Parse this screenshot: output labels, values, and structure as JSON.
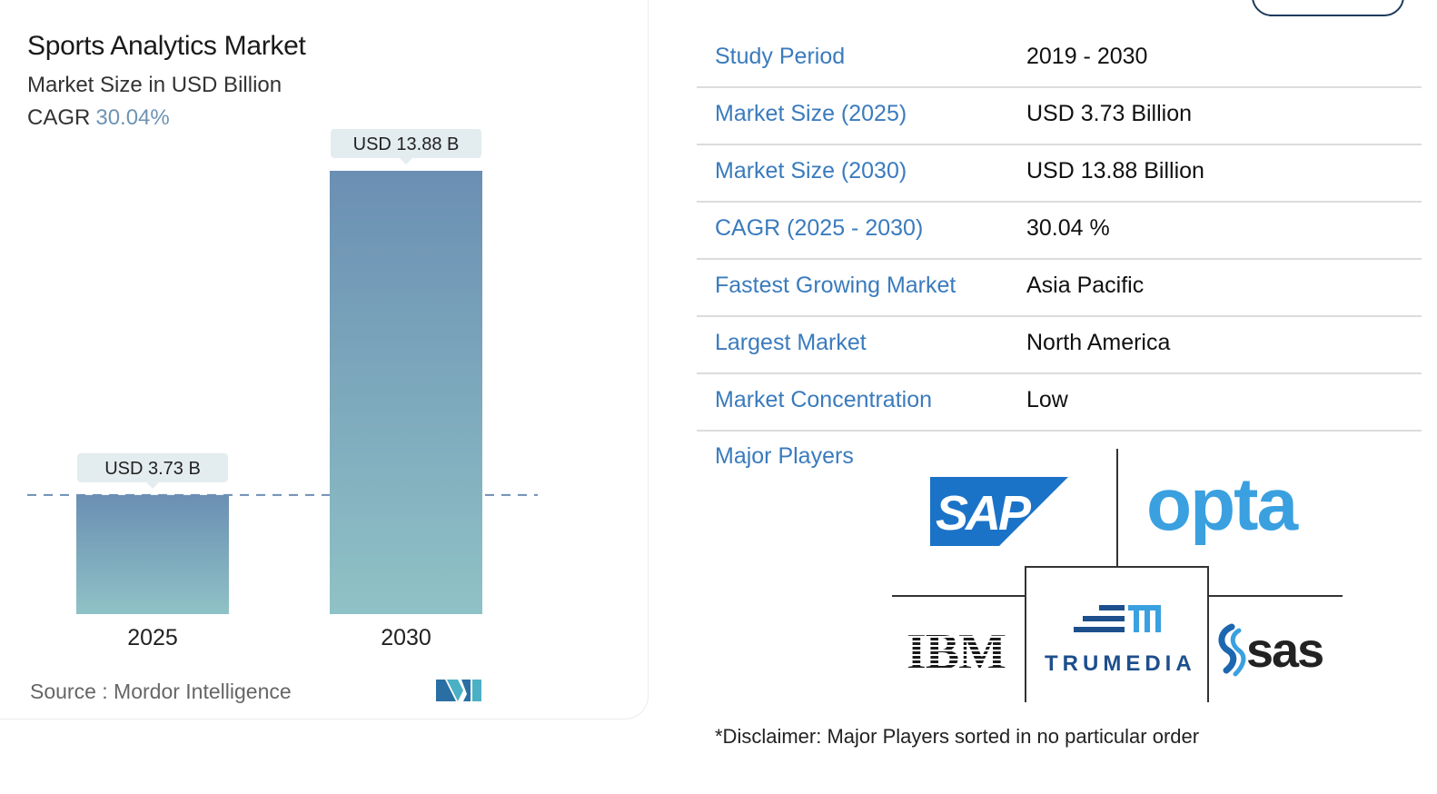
{
  "chart_data": {
    "type": "bar",
    "title": "Sports Analytics Market",
    "subtitle": "Market Size in USD Billion",
    "cagr_label": "CAGR",
    "cagr_value": "30.04%",
    "categories": [
      "2025",
      "2030"
    ],
    "values": [
      3.73,
      13.88
    ],
    "data_labels": [
      "USD 3.73 B",
      "USD 13.88 B"
    ],
    "reference_line_value": 3.73,
    "ylim": [
      0,
      13.88
    ],
    "xlabel": "",
    "ylabel": "",
    "grid": false,
    "colors": {
      "bar_top": "#6b8fb3",
      "bar_bottom": "#8fc2c6",
      "label_bg": "#e3ecef",
      "ref_line": "#6e8fb4"
    }
  },
  "source": {
    "label": "Source :",
    "name": "Mordor Intelligence"
  },
  "study_table": [
    {
      "key": "Study Period",
      "value": "2019 - 2030"
    },
    {
      "key": "Market Size (2025)",
      "value": "USD 3.73 Billion"
    },
    {
      "key": "Market Size (2030)",
      "value": "USD 13.88 Billion"
    },
    {
      "key": "CAGR (2025 - 2030)",
      "value": "30.04 %"
    },
    {
      "key": "Fastest Growing Market",
      "value": "Asia Pacific"
    },
    {
      "key": "Largest Market",
      "value": "North America"
    },
    {
      "key": "Market Concentration",
      "value": "Low"
    }
  ],
  "players": {
    "label": "Major Players",
    "logos": [
      "SAP",
      "opta",
      "IBM",
      "TRUMEDIA",
      "sas"
    ]
  },
  "disclaimer": "*Disclaimer: Major Players sorted in no particular order",
  "colors": {
    "accent_blue": "#3a7bbd",
    "navy": "#1d3a5c"
  }
}
